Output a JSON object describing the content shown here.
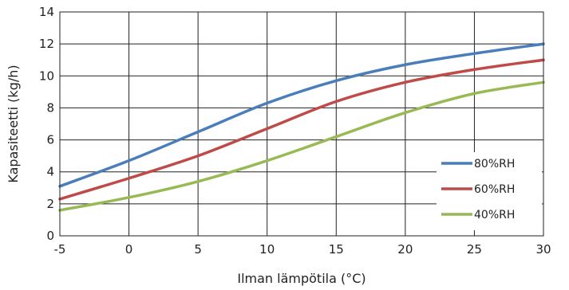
{
  "chart_data": {
    "type": "line",
    "title": "",
    "xlabel": "Ilman lämpötila (°C)",
    "ylabel": "Kapasiteetti (kg/h)",
    "xlim": [
      -5,
      30
    ],
    "ylim": [
      0,
      14
    ],
    "xticks": [
      -5,
      0,
      5,
      10,
      15,
      20,
      25,
      30
    ],
    "yticks": [
      0,
      2,
      4,
      6,
      8,
      10,
      12,
      14
    ],
    "grid": true,
    "legend_position": "bottom-right",
    "x": [
      -5,
      0,
      5,
      10,
      15,
      20,
      25,
      30
    ],
    "series": [
      {
        "name": "80%RH",
        "color": "#4a7ebb",
        "values": [
          3.1,
          4.7,
          6.5,
          8.3,
          9.7,
          10.7,
          11.4,
          12.0
        ]
      },
      {
        "name": "60%RH",
        "color": "#be4b48",
        "values": [
          2.3,
          3.6,
          5.0,
          6.7,
          8.4,
          9.6,
          10.4,
          11.0
        ]
      },
      {
        "name": "40%RH",
        "color": "#98b954",
        "values": [
          1.6,
          2.4,
          3.4,
          4.7,
          6.2,
          7.7,
          8.9,
          9.6
        ]
      }
    ]
  }
}
